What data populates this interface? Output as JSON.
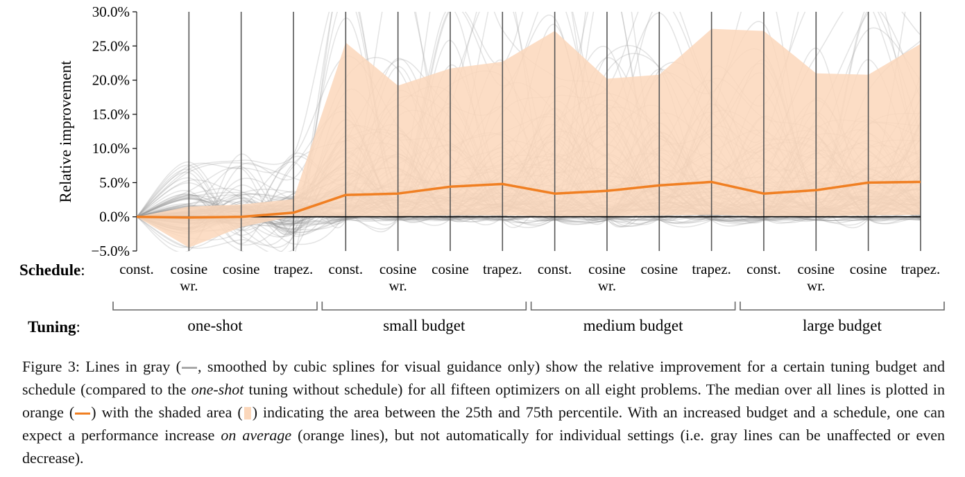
{
  "chart_data": {
    "type": "line",
    "ylabel": "Relative improvement",
    "ylim": [
      -5.0,
      30.0
    ],
    "yticks": [
      "−5.0%",
      "0.0%",
      "5.0%",
      "10.0%",
      "15.0%",
      "20.0%",
      "25.0%",
      "30.0%"
    ],
    "ytick_values": [
      -5,
      0,
      5,
      10,
      15,
      20,
      25,
      30
    ],
    "schedule_label": "Schedule",
    "tuning_label": "Tuning",
    "schedules": [
      "const.",
      "cosine\nwr.",
      "cosine",
      "trapez.",
      "const.",
      "cosine\nwr.",
      "cosine",
      "trapez.",
      "const.",
      "cosine\nwr.",
      "cosine",
      "trapez.",
      "const.",
      "cosine\nwr.",
      "cosine",
      "trapez."
    ],
    "tuning_groups": [
      "one-shot",
      "small budget",
      "medium budget",
      "large budget"
    ],
    "series": [
      {
        "name": "median",
        "values": [
          0.0,
          -0.1,
          0.0,
          0.6,
          3.2,
          3.4,
          4.4,
          4.8,
          3.4,
          3.8,
          4.6,
          5.1,
          3.4,
          3.9,
          5.0,
          5.1
        ]
      },
      {
        "name": "25th percentile",
        "values": [
          0.0,
          -4.5,
          -1.5,
          0.1,
          0.1,
          0.1,
          0.2,
          0.2,
          0.1,
          0.1,
          0.2,
          0.3,
          0.1,
          0.1,
          0.2,
          0.3
        ]
      },
      {
        "name": "75th percentile",
        "values": [
          0.0,
          1.5,
          1.8,
          2.6,
          25.5,
          19.2,
          21.7,
          22.7,
          27.2,
          20.2,
          20.8,
          27.5,
          27.2,
          21.0,
          20.8,
          25.3
        ]
      }
    ],
    "colors": {
      "median": "#f07f22",
      "band": "#fbd7bb",
      "gray_lines": "#9a9a9a",
      "grid": "#555555",
      "zero": "#000000"
    }
  },
  "caption": {
    "part1": "Figure 3: Lines in gray (",
    "part2": ", smoothed by cubic splines for visual guidance only) show the relative improvement for a certain tuning budget and schedule (compared to the ",
    "italic1": "one-shot",
    "part3": " tuning without schedule) for all fifteen optimizers on all eight problems. The median over all lines is plotted in orange (",
    "part4": ") with the shaded area (",
    "part5": ") indicating the area between the 25th and 75th percentile. With an increased budget and a schedule, one can expect a performance increase ",
    "italic2": "on average",
    "part6": " (orange lines), but not automatically for individual settings (i.e. gray lines can be unaffected or even decrease)."
  }
}
